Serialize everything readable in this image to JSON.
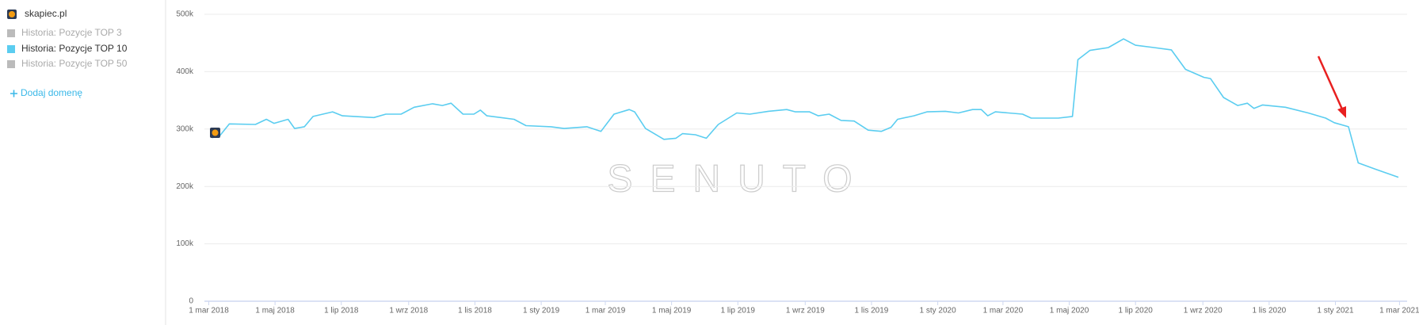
{
  "sidebar": {
    "domain": "skapiec.pl",
    "inactive": [
      "Historia: Pozycje TOP 3",
      "Historia: Pozycje TOP 50"
    ],
    "add_domain": "Dodaj domenę"
  },
  "chart_data": {
    "type": "line",
    "watermark": "SENUTO",
    "x": [
      "2018-03-04",
      "2018-03-11",
      "2018-03-20",
      "2018-04-13",
      "2018-04-23",
      "2018-04-30",
      "2018-05-13",
      "2018-05-19",
      "2018-05-28",
      "2018-06-05",
      "2018-06-23",
      "2018-07-02",
      "2018-07-31",
      "2018-08-11",
      "2018-08-25",
      "2018-09-06",
      "2018-09-23",
      "2018-10-02",
      "2018-10-10",
      "2018-10-21",
      "2018-10-31",
      "2018-11-06",
      "2018-11-12",
      "2018-12-07",
      "2018-12-18",
      "2019-01-10",
      "2019-01-22",
      "2019-02-12",
      "2019-02-25",
      "2019-03-09",
      "2019-03-23",
      "2019-03-28",
      "2019-04-07",
      "2019-04-24",
      "2019-05-05",
      "2019-05-11",
      "2019-05-23",
      "2019-06-02",
      "2019-06-13",
      "2019-06-30",
      "2019-07-12",
      "2019-07-29",
      "2019-08-15",
      "2019-08-23",
      "2019-09-05",
      "2019-09-13",
      "2019-09-23",
      "2019-10-04",
      "2019-10-16",
      "2019-10-29",
      "2019-11-10",
      "2019-11-19",
      "2019-11-25",
      "2019-12-10",
      "2019-12-22",
      "2020-01-08",
      "2020-01-20",
      "2020-02-02",
      "2020-02-10",
      "2020-02-16",
      "2020-02-23",
      "2020-03-19",
      "2020-03-27",
      "2020-04-21",
      "2020-05-04",
      "2020-05-09",
      "2020-05-20",
      "2020-06-06",
      "2020-06-20",
      "2020-07-01",
      "2020-07-18",
      "2020-08-03",
      "2020-08-16",
      "2020-09-02",
      "2020-09-08",
      "2020-09-20",
      "2020-10-03",
      "2020-10-12",
      "2020-10-18",
      "2020-10-26",
      "2020-11-16",
      "2020-12-07",
      "2020-12-23",
      "2020-12-31",
      "2021-01-13",
      "2021-01-22",
      "2021-02-07",
      "2021-02-28"
    ],
    "series": [
      {
        "name": "Historia: Pozycje TOP 10",
        "color": "#5bcdf0",
        "values": [
          285000,
          288000,
          309000,
          308000,
          317000,
          310000,
          317000,
          301000,
          304000,
          322000,
          330000,
          323000,
          320000,
          326000,
          326000,
          338000,
          344000,
          341000,
          345000,
          326000,
          326000,
          333000,
          323000,
          317000,
          306000,
          304000,
          301000,
          304000,
          296000,
          326000,
          334000,
          330000,
          301000,
          282000,
          284000,
          292000,
          290000,
          284000,
          308000,
          328000,
          326000,
          331000,
          334000,
          330000,
          330000,
          323000,
          326000,
          315000,
          314000,
          298000,
          296000,
          303000,
          317000,
          323000,
          330000,
          331000,
          328000,
          334000,
          334000,
          323000,
          330000,
          326000,
          319000,
          319000,
          322000,
          421000,
          437000,
          442000,
          457000,
          446000,
          442000,
          438000,
          404000,
          390000,
          388000,
          355000,
          341000,
          345000,
          336000,
          342000,
          338000,
          328000,
          319000,
          311000,
          304000,
          241000,
          230000,
          216000
        ]
      }
    ],
    "xlim": [
      "2018-02-25",
      "2021-03-08"
    ],
    "xticks": [
      {
        "value": "2018-03-01",
        "label": "1 mar 2018"
      },
      {
        "value": "2018-05-01",
        "label": "1 maj 2018"
      },
      {
        "value": "2018-07-01",
        "label": "1 lip 2018"
      },
      {
        "value": "2018-09-01",
        "label": "1 wrz 2018"
      },
      {
        "value": "2018-11-01",
        "label": "1 lis 2018"
      },
      {
        "value": "2019-01-01",
        "label": "1 sty 2019"
      },
      {
        "value": "2019-03-01",
        "label": "1 mar 2019"
      },
      {
        "value": "2019-05-01",
        "label": "1 maj 2019"
      },
      {
        "value": "2019-07-01",
        "label": "1 lip 2019"
      },
      {
        "value": "2019-09-01",
        "label": "1 wrz 2019"
      },
      {
        "value": "2019-11-01",
        "label": "1 lis 2019"
      },
      {
        "value": "2020-01-01",
        "label": "1 sty 2020"
      },
      {
        "value": "2020-03-01",
        "label": "1 mar 2020"
      },
      {
        "value": "2020-05-01",
        "label": "1 maj 2020"
      },
      {
        "value": "2020-07-01",
        "label": "1 lip 2020"
      },
      {
        "value": "2020-09-01",
        "label": "1 wrz 2020"
      },
      {
        "value": "2020-11-01",
        "label": "1 lis 2020"
      },
      {
        "value": "2021-01-01",
        "label": "1 sty 2021"
      },
      {
        "value": "2021-03-01",
        "label": "1 mar 2021"
      }
    ],
    "ylim": [
      0,
      500000
    ],
    "yticks": [
      0,
      {
        "value": 100000,
        "label": "100k"
      },
      {
        "value": 200000,
        "label": "200k"
      },
      {
        "value": 300000,
        "label": "300k"
      },
      {
        "value": 400000,
        "label": "400k"
      },
      {
        "value": 500000,
        "label": "500k"
      }
    ],
    "grid": true
  }
}
